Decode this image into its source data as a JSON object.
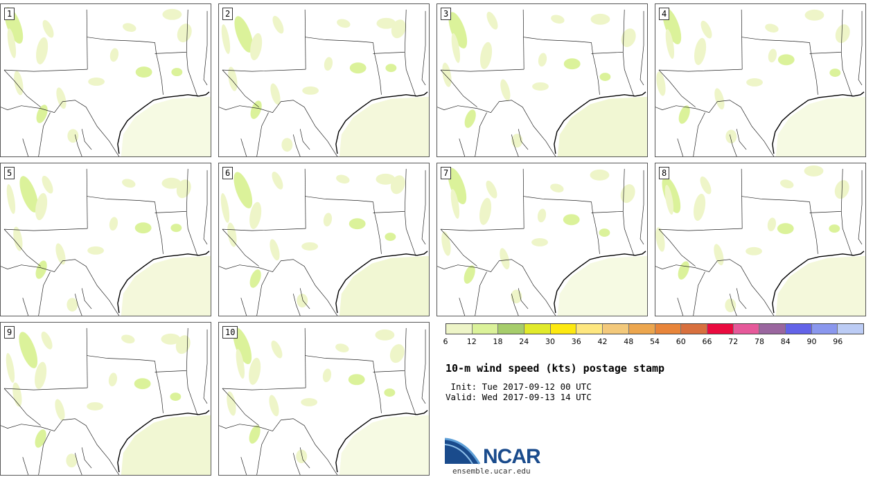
{
  "panels": [
    {
      "label": "1"
    },
    {
      "label": "2"
    },
    {
      "label": "3"
    },
    {
      "label": "4"
    },
    {
      "label": "5"
    },
    {
      "label": "6"
    },
    {
      "label": "7"
    },
    {
      "label": "8"
    },
    {
      "label": "9"
    },
    {
      "label": "10"
    }
  ],
  "colorbar": {
    "colors": [
      "#eef5c8",
      "#dbf29a",
      "#a6cd6b",
      "#e1ea2b",
      "#fde910",
      "#fee780",
      "#f3c97b",
      "#eca64e",
      "#e8853a",
      "#d8703e",
      "#ea0b3f",
      "#e6599a",
      "#9a669f",
      "#6363e8",
      "#8a97ee",
      "#bcccf5"
    ],
    "ticks": [
      "6",
      "12",
      "18",
      "24",
      "30",
      "36",
      "42",
      "48",
      "54",
      "60",
      "66",
      "72",
      "78",
      "84",
      "90",
      "96"
    ]
  },
  "title": "10-m wind speed (kts) postage stamp",
  "init_line": " Init: Tue 2017-09-12 00 UTC",
  "valid_line": "Valid: Wed 2017-09-13 14 UTC",
  "logo": {
    "text": "NCAR",
    "site": "ensemble.ucar.edu",
    "color": "#1a4b8c"
  }
}
